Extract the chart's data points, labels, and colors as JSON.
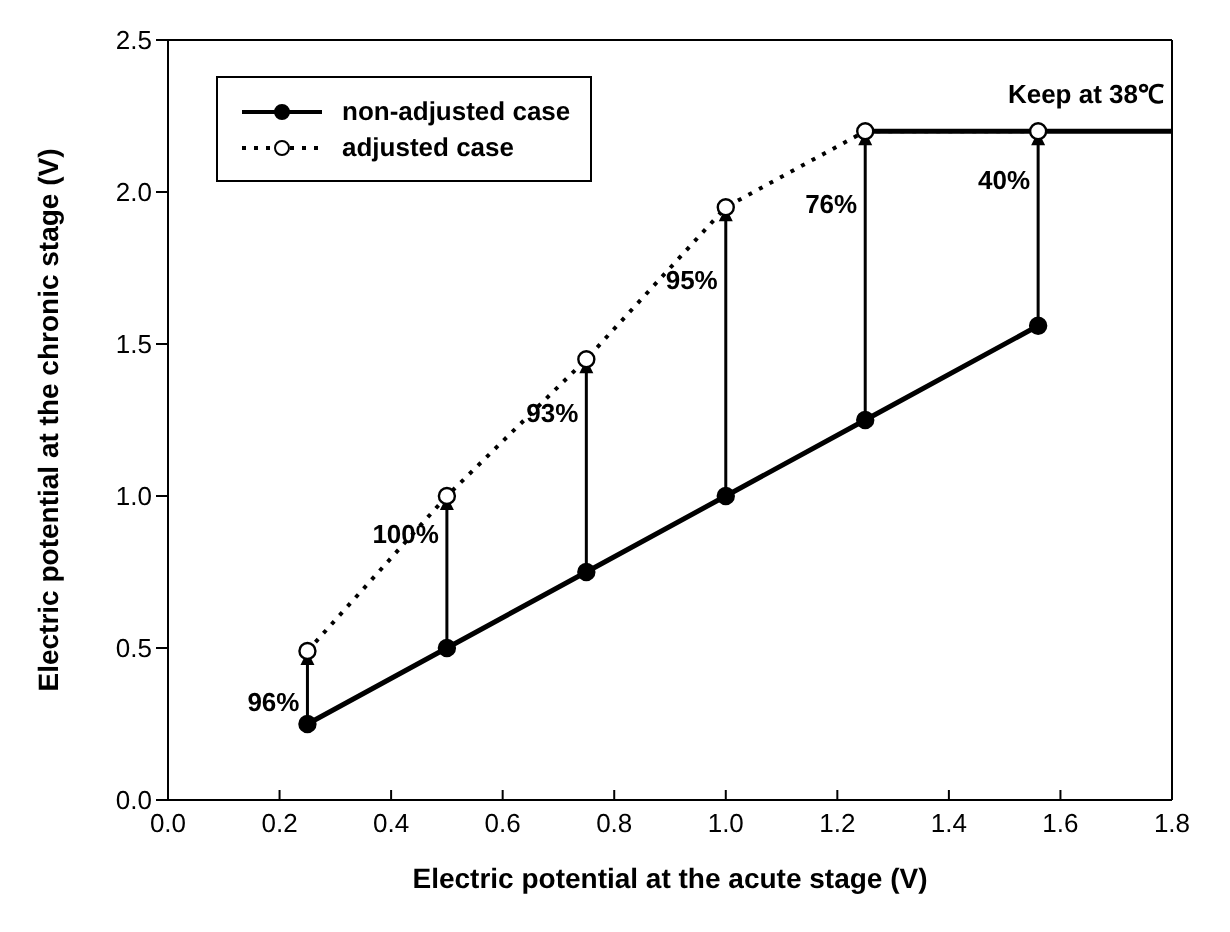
{
  "chart_data": {
    "type": "line",
    "xlabel": "Electric potential at the acute stage (V)",
    "ylabel": "Electric potential at the chronic stage (V)",
    "xlim": [
      0,
      1.8
    ],
    "xticks": [
      {
        "value": 0,
        "label": "0.0"
      },
      {
        "value": 0.2,
        "label": "0.2"
      },
      {
        "value": 0.4,
        "label": "0.4"
      },
      {
        "value": 0.6,
        "label": "0.6"
      },
      {
        "value": 0.8,
        "label": "0.8"
      },
      {
        "value": 1,
        "label": "1.0"
      },
      {
        "value": 1.2,
        "label": "1.2"
      },
      {
        "value": 1.4,
        "label": "1.4"
      },
      {
        "value": 1.6,
        "label": "1.6"
      },
      {
        "value": 1.8,
        "label": "1.8"
      }
    ],
    "ylim": [
      0,
      2.5
    ],
    "yticks": [
      {
        "value": 0,
        "label": "0.0"
      },
      {
        "value": 0.5,
        "label": "0.5"
      },
      {
        "value": 1,
        "label": "1.0"
      },
      {
        "value": 1.5,
        "label": "1.5"
      },
      {
        "value": 2,
        "label": "2.0"
      },
      {
        "value": 2.5,
        "label": "2.5"
      }
    ],
    "grid": false,
    "legend": "top left",
    "series": [
      {
        "name": "non-adjusted case",
        "color": "#000000",
        "x": [
          0.25,
          0.5,
          0.75,
          1.0,
          1.25,
          1.56
        ],
        "values": [
          0.25,
          0.5,
          0.75,
          1.0,
          1.25,
          1.56
        ],
        "marker": "circle",
        "line_style": "solid"
      },
      {
        "name": "adjusted case",
        "color": "#000000",
        "x": [
          0.25,
          0.5,
          0.75,
          1.0,
          1.25,
          1.56
        ],
        "values": [
          0.49,
          1.0,
          1.45,
          1.95,
          2.2,
          2.2
        ],
        "marker": "circle",
        "line_style": "dotted"
      },
      {
        "color": "#000000",
        "x": [
          1.25,
          1.8
        ],
        "values": [
          2.2,
          2.2
        ],
        "marker": "none",
        "line_style": "solid"
      }
    ],
    "annotations": [
      "96%",
      "100%",
      "93%",
      "95%",
      "76%",
      "40%",
      "Keep at 38℃"
    ]
  }
}
